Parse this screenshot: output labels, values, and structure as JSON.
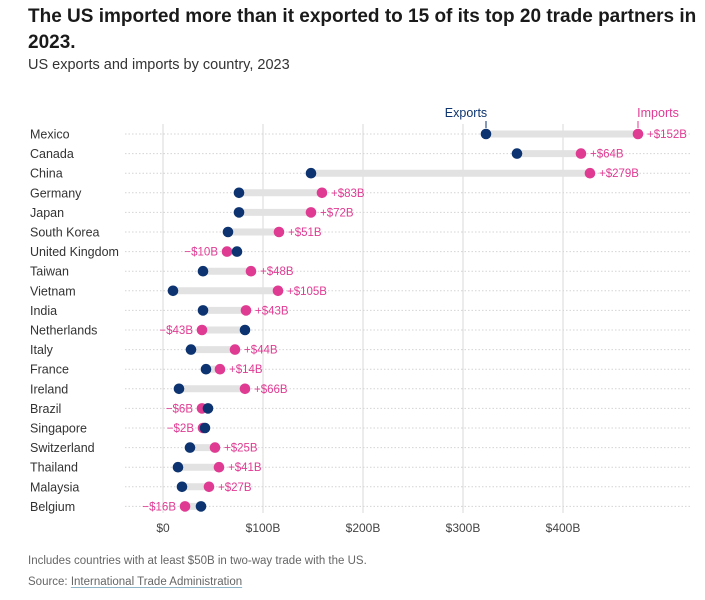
{
  "header": {
    "title": "The US imported more than it exported to 15 of its top 20 trade partners in 2023.",
    "subtitle": "US exports and imports by country, 2023"
  },
  "footer": {
    "note": "Includes countries with at least $50B in two-way trade with the US.",
    "source_prefix": "Source: ",
    "source_link": "International Trade Administration"
  },
  "colors": {
    "exports": "#0d3470",
    "imports": "#e03b93",
    "connector": "#e2e2e2",
    "gridline": "#d9d9d9"
  },
  "chart_data": {
    "type": "dumbbell",
    "title": "The US imported more than it exported to 15 of its top 20 trade partners in 2023.",
    "subtitle": "US exports and imports by country, 2023",
    "xlabel": "",
    "ylabel": "",
    "unit": "billion USD",
    "xlim": [
      0,
      520
    ],
    "x_ticks": [
      0,
      100,
      200,
      300,
      400
    ],
    "x_tick_labels": [
      "$0",
      "$100B",
      "$200B",
      "$300B",
      "$400B"
    ],
    "legend": [
      {
        "name": "Exports",
        "color": "#0d3470",
        "position": "top, above Mexico exports point"
      },
      {
        "name": "Imports",
        "color": "#e03b93",
        "position": "top, above Mexico imports point"
      }
    ],
    "categories": [
      "Mexico",
      "Canada",
      "China",
      "Germany",
      "Japan",
      "South Korea",
      "United Kingdom",
      "Taiwan",
      "Vietnam",
      "India",
      "Netherlands",
      "Italy",
      "France",
      "Ireland",
      "Brazil",
      "Singapore",
      "Switzerland",
      "Thailand",
      "Malaysia",
      "Belgium"
    ],
    "series": [
      {
        "name": "Exports",
        "values": [
          323,
          354,
          148,
          76,
          76,
          65,
          74,
          40,
          10,
          40,
          82,
          28,
          43,
          16,
          45,
          42,
          27,
          15,
          19,
          38
        ]
      },
      {
        "name": "Imports",
        "values": [
          475,
          418,
          427,
          159,
          148,
          116,
          64,
          88,
          115,
          83,
          39,
          72,
          57,
          82,
          39,
          40,
          52,
          56,
          46,
          22
        ]
      }
    ],
    "data_labels": [
      "+$152B",
      "+$64B",
      "+$279B",
      "+$83B",
      "+$72B",
      "+$51B",
      "−$10B",
      "+$48B",
      "+$105B",
      "+$43B",
      "−$43B",
      "+$44B",
      "+$14B",
      "+$66B",
      "−$6B",
      "−$2B",
      "+$25B",
      "+$41B",
      "+$27B",
      "−$16B"
    ],
    "grid": "vertical gridlines at ticks and dotted horizontal row lines"
  }
}
